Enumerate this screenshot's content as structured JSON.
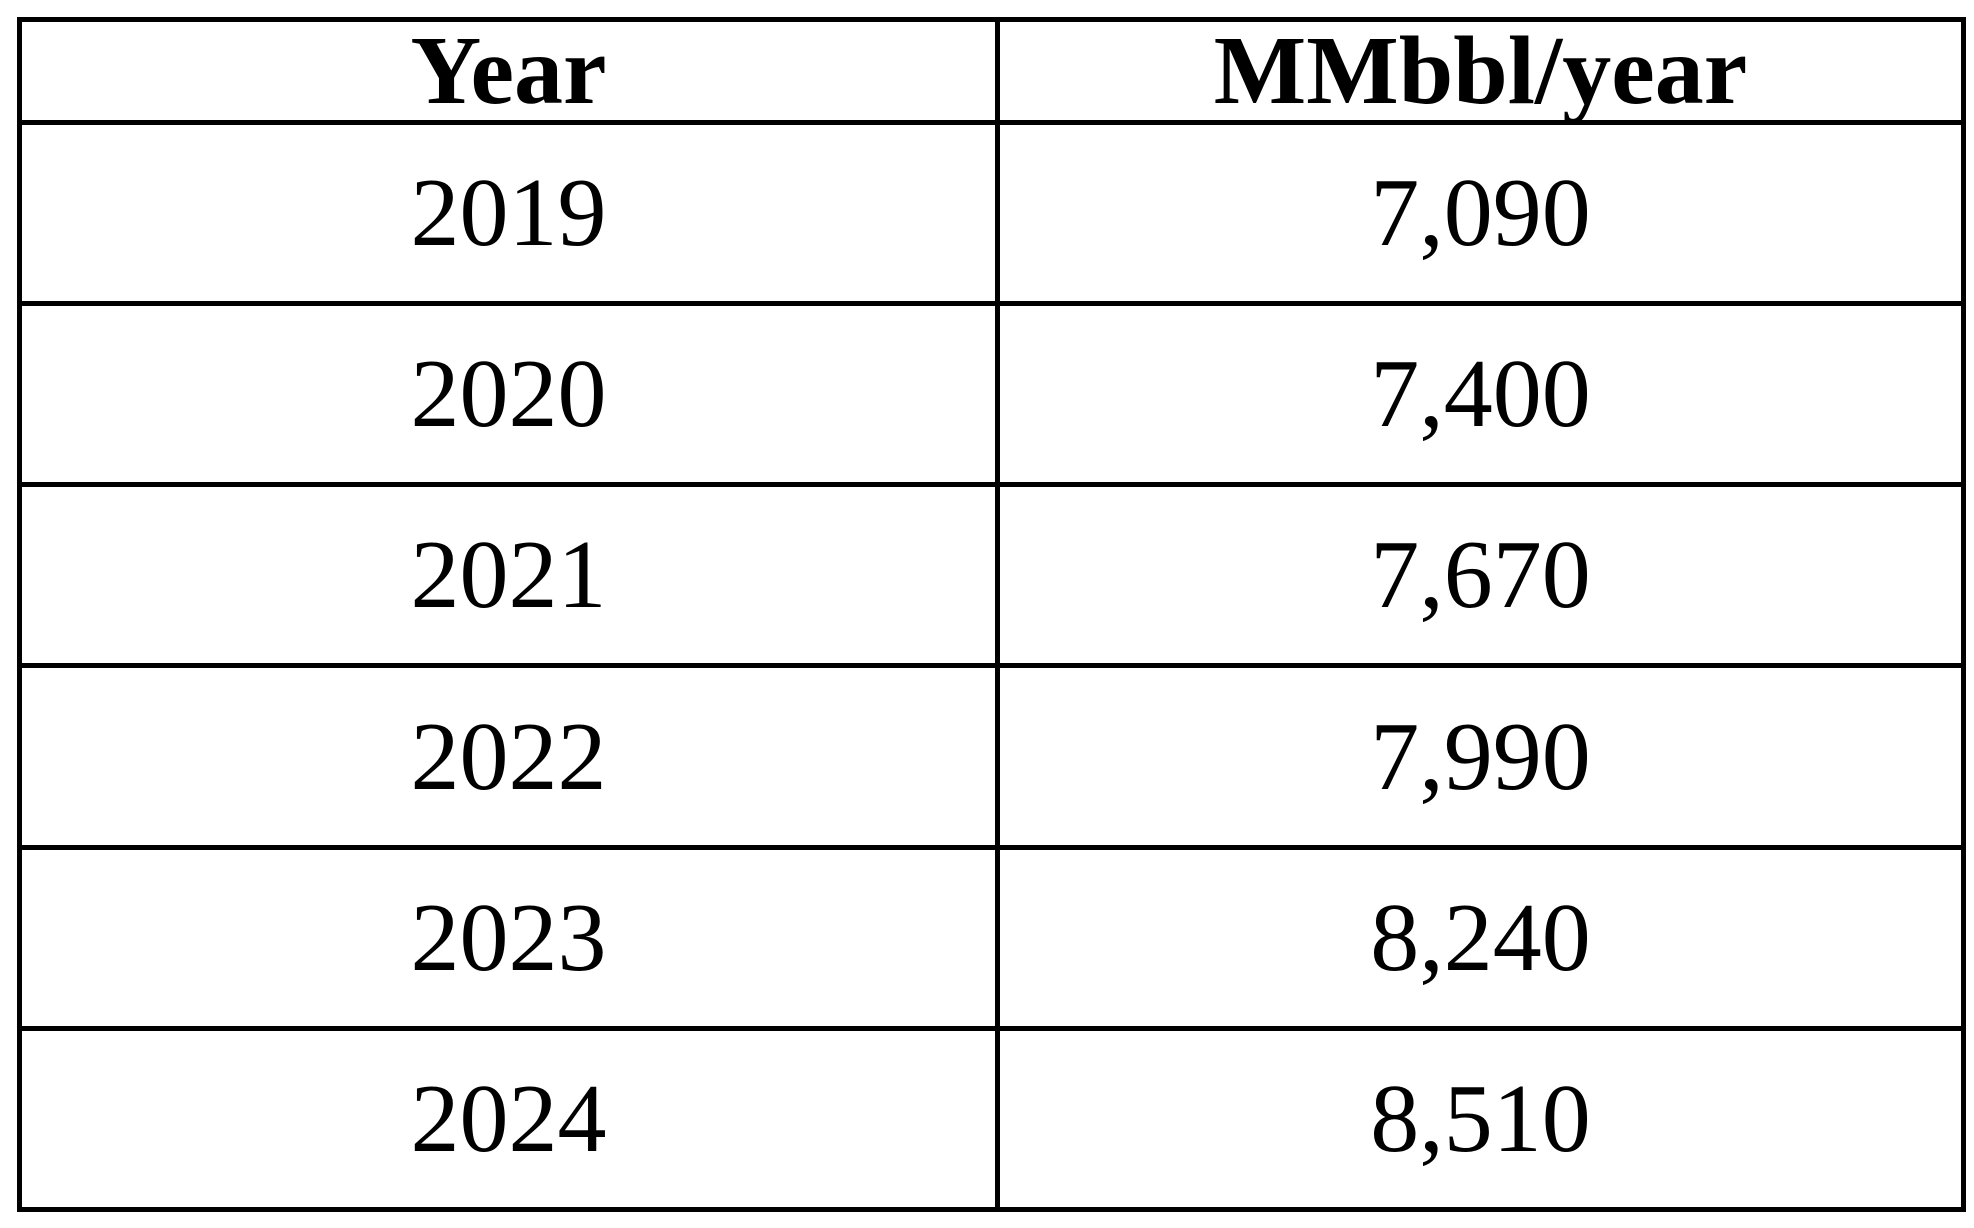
{
  "chart_data": {
    "type": "table",
    "columns": [
      "Year",
      "MMbbl/year"
    ],
    "rows": [
      [
        "2019",
        "7,090"
      ],
      [
        "2020",
        "7,400"
      ],
      [
        "2021",
        "7,670"
      ],
      [
        "2022",
        "7,990"
      ],
      [
        "2023",
        "8,240"
      ],
      [
        "2024",
        "8,510"
      ]
    ],
    "x": [
      2019,
      2020,
      2021,
      2022,
      2023,
      2024
    ],
    "values": [
      7090,
      7400,
      7670,
      7990,
      8240,
      8510
    ]
  }
}
